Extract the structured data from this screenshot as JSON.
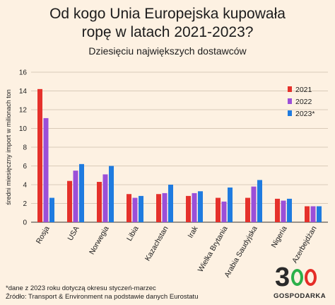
{
  "chart_data": {
    "type": "bar",
    "title_lines": [
      "Od kogo Unia Europejska kupowała",
      "ropę w latach 2021-2023?"
    ],
    "subtitle": "Dziesięciu największych dostawców",
    "ylabel": "średni miesięczny import w milionach ton",
    "ylim": [
      0,
      16
    ],
    "yticks": [
      0,
      2,
      4,
      6,
      8,
      10,
      12,
      14,
      16
    ],
    "grid": true,
    "legend_position": "top-right",
    "categories": [
      "Rosja",
      "USA",
      "Norwegia",
      "Libia",
      "Kazachstan",
      "Irak",
      "Wielka Brytania",
      "Arabia Saudyjska",
      "Nigeria",
      "Azerbejdżan"
    ],
    "series": [
      {
        "name": "2021",
        "color": "#e5312b",
        "values": [
          14.2,
          4.4,
          4.3,
          3.0,
          3.0,
          2.8,
          2.6,
          2.6,
          2.5,
          1.7
        ]
      },
      {
        "name": "2022",
        "color": "#9b4fd8",
        "values": [
          11.1,
          5.5,
          5.1,
          2.6,
          3.1,
          3.1,
          2.2,
          3.8,
          2.3,
          1.7
        ]
      },
      {
        "name": "2023*",
        "color": "#1f7be0",
        "values": [
          2.6,
          6.2,
          6.0,
          2.8,
          4.0,
          3.3,
          3.7,
          4.5,
          2.5,
          1.7
        ]
      }
    ]
  },
  "footnote": {
    "line1": "*dane z 2023 roku dotyczą okresu styczeń-marzec",
    "line2": "Źródło: Transport & Environment na podstawie danych Eurostatu"
  },
  "logo": {
    "digits": "3",
    "word": "GOSPODARKA"
  }
}
